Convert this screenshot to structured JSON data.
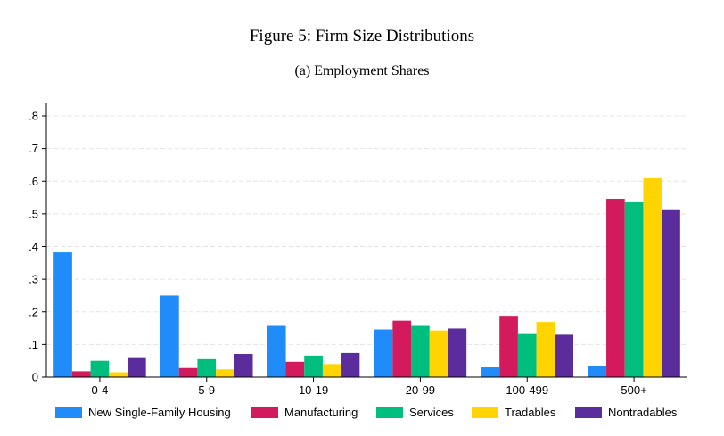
{
  "figure": {
    "title": "Figure 5: Firm Size Distributions",
    "subtitle": "(a) Employment Shares"
  },
  "chart_data": {
    "type": "bar",
    "categories": [
      "0-4",
      "5-9",
      "10-19",
      "20-99",
      "100-499",
      "500+"
    ],
    "series": [
      {
        "name": "New Single-Family Housing",
        "color": "#1f8cf9",
        "values": [
          0.382,
          0.25,
          0.157,
          0.146,
          0.03,
          0.035
        ]
      },
      {
        "name": "Manufacturing",
        "color": "#d31a5c",
        "values": [
          0.018,
          0.028,
          0.047,
          0.173,
          0.188,
          0.546
        ]
      },
      {
        "name": "Services",
        "color": "#00bf7e",
        "values": [
          0.05,
          0.055,
          0.066,
          0.157,
          0.132,
          0.538
        ]
      },
      {
        "name": "Tradables",
        "color": "#ffd400",
        "values": [
          0.015,
          0.024,
          0.04,
          0.143,
          0.169,
          0.609
        ]
      },
      {
        "name": "Nontradables",
        "color": "#5b2c9c",
        "values": [
          0.061,
          0.071,
          0.074,
          0.149,
          0.13,
          0.514
        ]
      }
    ],
    "ylim": [
      0,
      0.8
    ],
    "yticks": [
      0,
      0.1,
      0.2,
      0.3,
      0.4,
      0.5,
      0.6,
      0.7,
      0.8
    ],
    "ytick_labels": [
      "0",
      ".1",
      ".2",
      ".3",
      ".4",
      ".5",
      ".6",
      ".7",
      ".8"
    ],
    "grid": true,
    "legend_position": "bottom"
  }
}
